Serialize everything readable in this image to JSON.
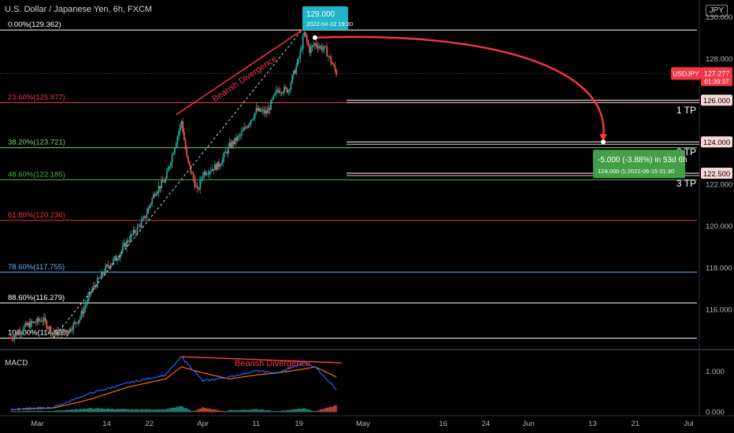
{
  "header": {
    "title": "U.S. Dollar / Japanese Yen, 6h, FXCM",
    "currency_button": "JPY"
  },
  "price_axis": {
    "ticks": [
      {
        "label": "130.000",
        "value": 130
      },
      {
        "label": "128.000",
        "value": 128
      },
      {
        "label": "122.000",
        "value": 122
      },
      {
        "label": "120.000",
        "value": 120
      },
      {
        "label": "118.000",
        "value": 118
      },
      {
        "label": "116.000",
        "value": 116
      }
    ],
    "range": [
      114.2,
      130.8
    ]
  },
  "macd_axis": {
    "ticks": [
      {
        "label": "1.000",
        "value": 1.0
      },
      {
        "label": "0.000",
        "value": 0.0
      }
    ],
    "range": [
      -0.05,
      1.45
    ]
  },
  "time_axis": {
    "ticks": [
      {
        "label": "Mar",
        "date": "2022-03-01"
      },
      {
        "label": "14",
        "date": "2022-03-14"
      },
      {
        "label": "22",
        "date": "2022-03-22"
      },
      {
        "label": "Apr",
        "date": "2022-04-01"
      },
      {
        "label": "11",
        "date": "2022-04-11"
      },
      {
        "label": "19",
        "date": "2022-04-19"
      },
      {
        "label": "May",
        "date": "2022-05-01"
      },
      {
        "label": "16",
        "date": "2022-05-16"
      },
      {
        "label": "24",
        "date": "2022-05-24"
      },
      {
        "label": "Jun",
        "date": "2022-06-01"
      },
      {
        "label": "13",
        "date": "2022-06-13"
      },
      {
        "label": "21",
        "date": "2022-06-21"
      },
      {
        "label": "Jul",
        "date": "2022-07-01"
      }
    ]
  },
  "current_price": {
    "symbol": "USDJPY",
    "price": "127.277",
    "countdown": "01:39:37",
    "value": 127.277,
    "color": "#f23645"
  },
  "fib_levels": [
    {
      "label": "0.00%(129.362)",
      "value": 129.362,
      "color": "#ffffff"
    },
    {
      "label": "23.60%(125.877)",
      "value": 125.877,
      "color": "#f23645"
    },
    {
      "label": "38.20%(123.721)",
      "value": 123.721,
      "color": "#81c784"
    },
    {
      "label": "48.60%(122.185)",
      "value": 122.185,
      "color": "#4caf50"
    },
    {
      "label": "61.80%(120.236)",
      "value": 120.236,
      "color": "#f23645"
    },
    {
      "label": "78.60%(117.755)",
      "value": 117.755,
      "color": "#64b5f6"
    },
    {
      "label": "88.60%(116.279)",
      "value": 116.279,
      "color": "#ffffff"
    },
    {
      "label": "100.00%(114.595)",
      "value": 114.595,
      "color": "#ffffff"
    }
  ],
  "targets": [
    {
      "label": "1 TP",
      "price_label": "126.000",
      "value": 126.0
    },
    {
      "label": "2 TP",
      "price_label": "124.000",
      "value": 124.0
    },
    {
      "label": "3 TP",
      "price_label": "122.500",
      "value": 122.5
    }
  ],
  "annotations": {
    "price_top_label": "129.000",
    "price_top_date": "2022-04-22 19:30",
    "projection_main": "-5.000 (-3.88%) in 53d 6h",
    "projection_sub": "124.000 ◷ 2022-06-15  01:30",
    "bearish_divergence": "Bearish Divergence",
    "macd_title": "MACD",
    "macd_bearish_divergence": "Bearish Divergence"
  },
  "chart_data": {
    "type": "candlestick",
    "instrument": "USDJPY",
    "interval": "6h",
    "source": "FXCM",
    "price_path": [
      {
        "date": "2022-02-24",
        "price": 114.6
      },
      {
        "date": "2022-02-27",
        "price": 115.2
      },
      {
        "date": "2022-03-02",
        "price": 115.5
      },
      {
        "date": "2022-03-04",
        "price": 114.8
      },
      {
        "date": "2022-03-07",
        "price": 115.0
      },
      {
        "date": "2022-03-09",
        "price": 115.6
      },
      {
        "date": "2022-03-11",
        "price": 116.8
      },
      {
        "date": "2022-03-14",
        "price": 118.0
      },
      {
        "date": "2022-03-16",
        "price": 118.5
      },
      {
        "date": "2022-03-18",
        "price": 119.3
      },
      {
        "date": "2022-03-21",
        "price": 120.3
      },
      {
        "date": "2022-03-23",
        "price": 121.6
      },
      {
        "date": "2022-03-25",
        "price": 122.2
      },
      {
        "date": "2022-03-28",
        "price": 125.0
      },
      {
        "date": "2022-03-29",
        "price": 123.2
      },
      {
        "date": "2022-03-31",
        "price": 121.6
      },
      {
        "date": "2022-04-01",
        "price": 122.5
      },
      {
        "date": "2022-04-04",
        "price": 122.9
      },
      {
        "date": "2022-04-06",
        "price": 123.8
      },
      {
        "date": "2022-04-08",
        "price": 124.3
      },
      {
        "date": "2022-04-11",
        "price": 125.5
      },
      {
        "date": "2022-04-13",
        "price": 125.4
      },
      {
        "date": "2022-04-15",
        "price": 126.5
      },
      {
        "date": "2022-04-17",
        "price": 126.5
      },
      {
        "date": "2022-04-19",
        "price": 128.0
      },
      {
        "date": "2022-04-20",
        "price": 129.2
      },
      {
        "date": "2022-04-21",
        "price": 128.4
      },
      {
        "date": "2022-04-22",
        "price": 128.7
      },
      {
        "date": "2022-04-24",
        "price": 128.4
      },
      {
        "date": "2022-04-26",
        "price": 127.3
      }
    ],
    "macd": [
      {
        "date": "2022-02-24",
        "macd": 0.05,
        "signal": 0.04
      },
      {
        "date": "2022-03-04",
        "macd": 0.1,
        "signal": 0.08
      },
      {
        "date": "2022-03-11",
        "macd": 0.45,
        "signal": 0.3
      },
      {
        "date": "2022-03-18",
        "macd": 0.7,
        "signal": 0.6
      },
      {
        "date": "2022-03-25",
        "macd": 0.9,
        "signal": 0.8
      },
      {
        "date": "2022-03-28",
        "macd": 1.35,
        "signal": 1.1
      },
      {
        "date": "2022-04-01",
        "macd": 0.75,
        "signal": 0.95
      },
      {
        "date": "2022-04-06",
        "macd": 0.85,
        "signal": 0.8
      },
      {
        "date": "2022-04-11",
        "macd": 1.0,
        "signal": 0.9
      },
      {
        "date": "2022-04-15",
        "macd": 0.95,
        "signal": 0.95
      },
      {
        "date": "2022-04-20",
        "macd": 1.2,
        "signal": 1.05
      },
      {
        "date": "2022-04-22",
        "macd": 1.1,
        "signal": 1.1
      },
      {
        "date": "2022-04-26",
        "macd": 0.55,
        "signal": 0.85
      }
    ],
    "colors": {
      "up": "#26a69a",
      "down": "#ef5350",
      "macd": "#2962ff",
      "signal": "#ff6d00"
    },
    "x_range": [
      "2022-02-22",
      "2022-07-03"
    ],
    "grid": false
  }
}
